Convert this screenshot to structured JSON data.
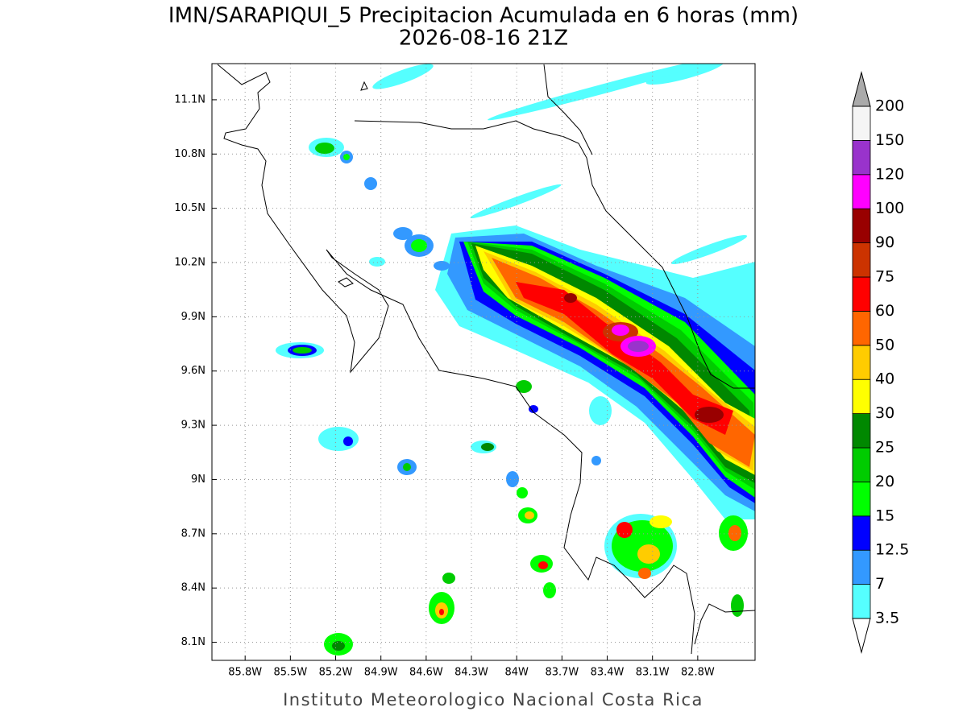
{
  "map": {
    "title": "IMN/SARAPIQUI_5 Precipitacion Acumulada en 6 horas (mm)",
    "subtitle": "2026-08-16 21Z",
    "footer": "Instituto Meteorologico Nacional Costa Rica",
    "lonlim": [
      -86.02,
      -82.42
    ],
    "latlim": [
      8.0,
      11.3
    ],
    "lon_ticks": [
      {
        "value": -85.8,
        "label": "85.8W"
      },
      {
        "value": -85.5,
        "label": "85.5W"
      },
      {
        "value": -85.2,
        "label": "85.2W"
      },
      {
        "value": -84.9,
        "label": "84.9W"
      },
      {
        "value": -84.6,
        "label": "84.6W"
      },
      {
        "value": -84.3,
        "label": "84.3W"
      },
      {
        "value": -84.0,
        "label": "84W"
      },
      {
        "value": -83.7,
        "label": "83.7W"
      },
      {
        "value": -83.4,
        "label": "83.4W"
      },
      {
        "value": -83.1,
        "label": "83.1W"
      },
      {
        "value": -82.8,
        "label": "82.8W"
      }
    ],
    "lat_ticks": [
      {
        "value": 8.1,
        "label": "8.1N"
      },
      {
        "value": 8.4,
        "label": "8.4N"
      },
      {
        "value": 8.7,
        "label": "8.7N"
      },
      {
        "value": 9.0,
        "label": "9N"
      },
      {
        "value": 9.3,
        "label": "9.3N"
      },
      {
        "value": 9.6,
        "label": "9.6N"
      },
      {
        "value": 9.9,
        "label": "9.9N"
      },
      {
        "value": 10.2,
        "label": "10.2N"
      },
      {
        "value": 10.5,
        "label": "10.5N"
      },
      {
        "value": 10.8,
        "label": "10.8N"
      },
      {
        "value": 11.1,
        "label": "11.1N"
      }
    ],
    "grid": true,
    "colorbar": {
      "levels": [
        3.5,
        7,
        12.5,
        15,
        20,
        25,
        30,
        40,
        50,
        60,
        75,
        90,
        100,
        120,
        150,
        200
      ],
      "colors": [
        "#55ffff",
        "#3399ff",
        "#0000ff",
        "#00ff00",
        "#00cc00",
        "#008800",
        "#ffff00",
        "#ffcc00",
        "#ff6600",
        "#ff0000",
        "#cc3300",
        "#990000",
        "#ff00ff",
        "#9933cc",
        "#f5f5f5"
      ],
      "under_color": "#ffffff",
      "over_color": "#aaaaaa"
    }
  }
}
